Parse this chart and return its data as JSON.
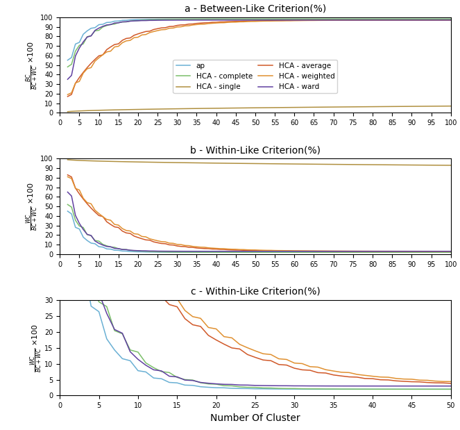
{
  "title_a": "a - Between-Like Criterion(%)",
  "title_b": "b - Within-Like Criterion(%)",
  "title_c": "c - Within-Like Criterion(%)",
  "xlabel": "Number Of Cluster",
  "colors": {
    "ap": "#6ab0d4",
    "complete": "#7bbf6a",
    "single": "#b09040",
    "average": "#d05828",
    "weighted": "#e09030",
    "ward": "#6040a0"
  },
  "legend_labels": [
    "ap",
    "HCA - complete",
    "HCA - single",
    "HCA - average",
    "HCA - weighted",
    "HCA - ward"
  ],
  "styles": [
    "ap",
    "complete",
    "single",
    "average",
    "weighted",
    "ward"
  ]
}
